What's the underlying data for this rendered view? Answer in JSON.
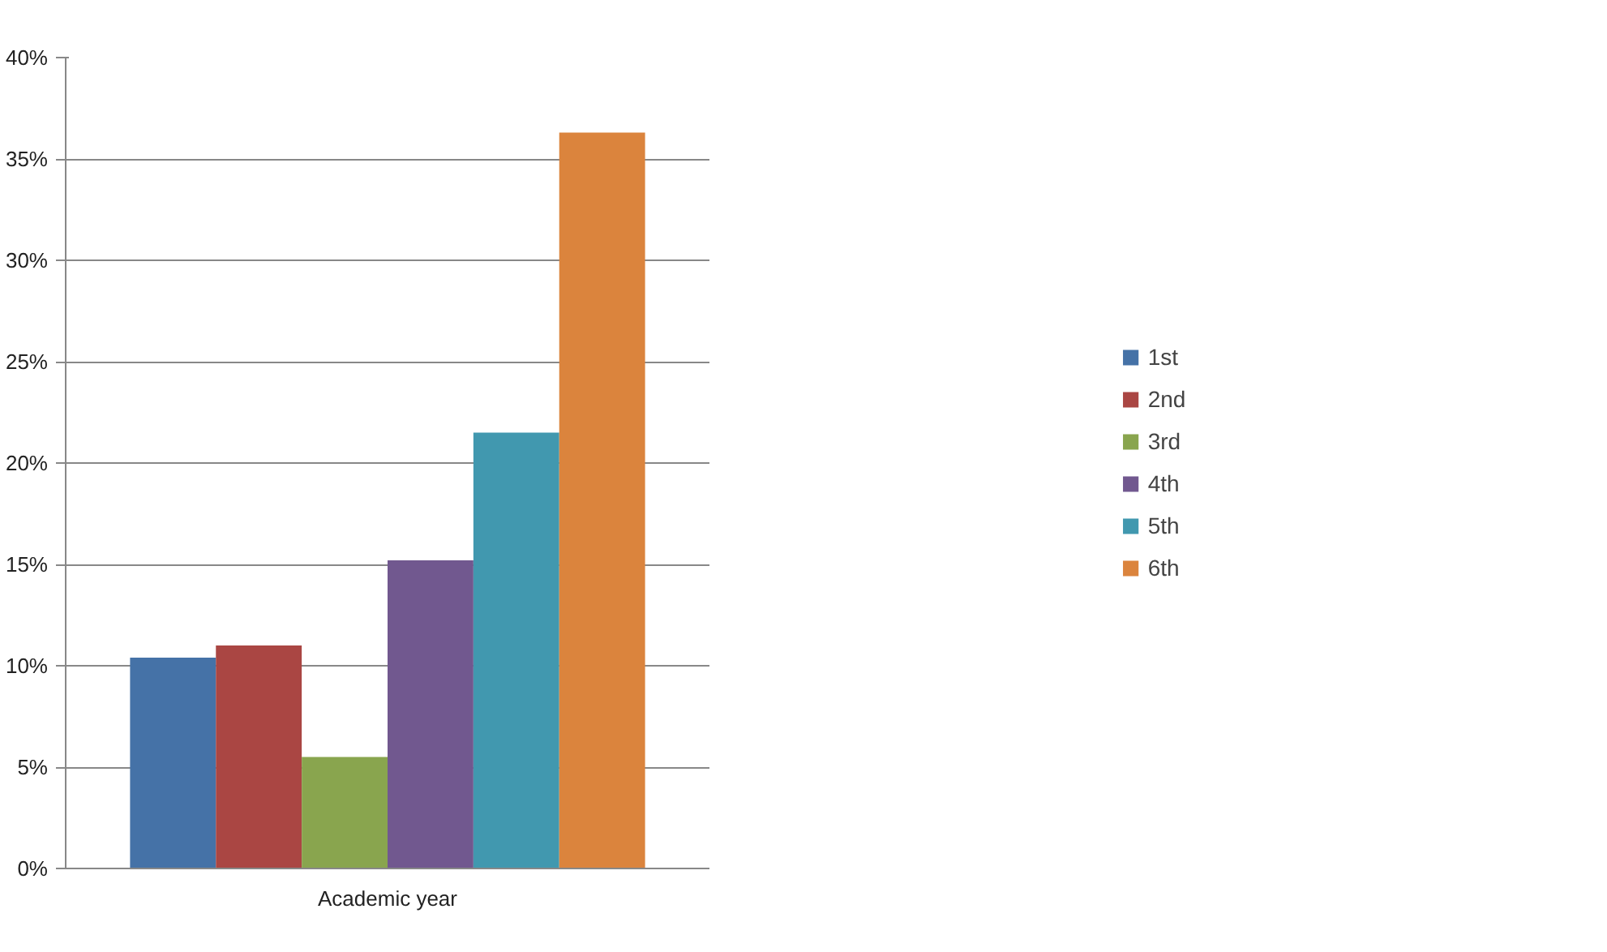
{
  "chart_data": {
    "type": "bar",
    "categories": [
      "Academic year"
    ],
    "series": [
      {
        "name": "1st",
        "color": "#4572a7",
        "values": [
          10.4
        ]
      },
      {
        "name": "2nd",
        "color": "#aa4643",
        "values": [
          11.0
        ]
      },
      {
        "name": "3rd",
        "color": "#89a54e",
        "values": [
          5.5
        ]
      },
      {
        "name": "4th",
        "color": "#71588f",
        "values": [
          15.2
        ]
      },
      {
        "name": "5th",
        "color": "#4198af",
        "values": [
          21.5
        ]
      },
      {
        "name": "6th",
        "color": "#db843d",
        "values": [
          36.3
        ]
      }
    ],
    "ylim": [
      0,
      40
    ],
    "yticks": [
      {
        "value": 0,
        "label": "0%"
      },
      {
        "value": 5,
        "label": "5%"
      },
      {
        "value": 10,
        "label": "10%"
      },
      {
        "value": 15,
        "label": "15%"
      },
      {
        "value": 20,
        "label": "20%"
      },
      {
        "value": 25,
        "label": "25%"
      },
      {
        "value": 30,
        "label": "30%"
      },
      {
        "value": 35,
        "label": "35%"
      },
      {
        "value": 40,
        "label": "40%"
      }
    ],
    "grid": "y",
    "legend": "right"
  }
}
